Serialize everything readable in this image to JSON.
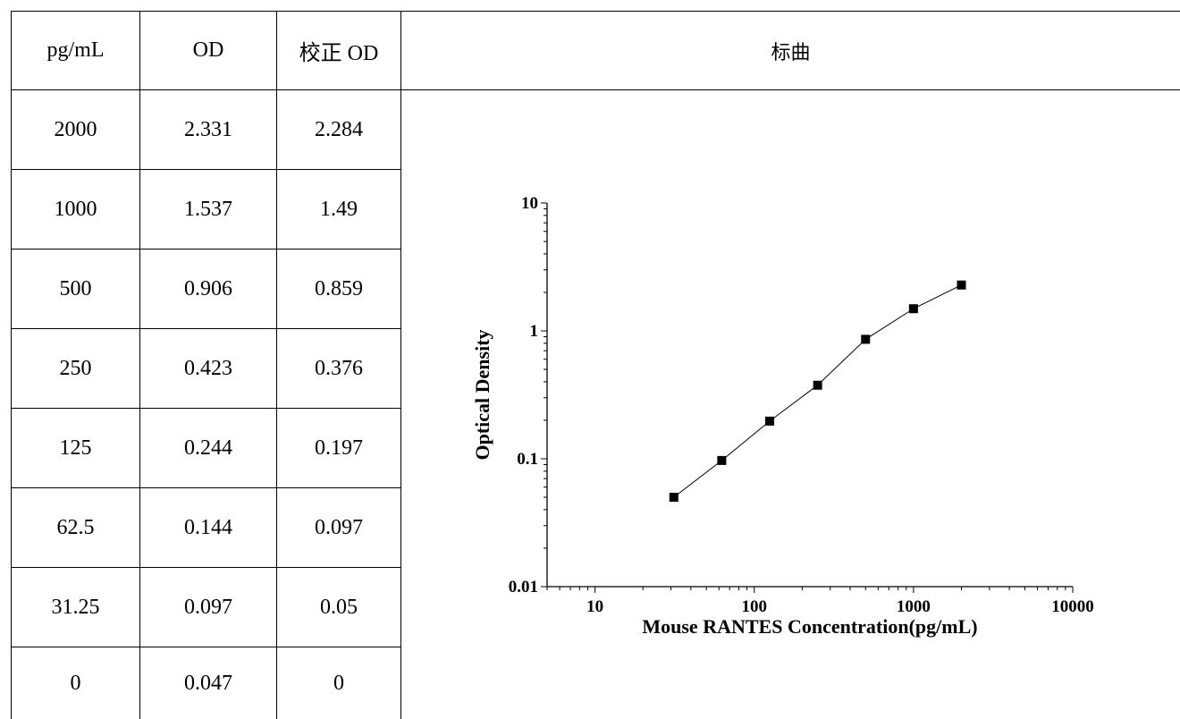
{
  "table": {
    "headers": [
      "pg/mL",
      "OD",
      "校正 OD"
    ],
    "rows": [
      [
        "2000",
        "2.331",
        "2.284"
      ],
      [
        "1000",
        "1.537",
        "1.49"
      ],
      [
        "500",
        "0.906",
        "0.859"
      ],
      [
        "250",
        "0.423",
        "0.376"
      ],
      [
        "125",
        "0.244",
        "0.197"
      ],
      [
        "62.5",
        "0.144",
        "0.097"
      ],
      [
        "31.25",
        "0.097",
        "0.05"
      ],
      [
        "0",
        "0.047",
        "0"
      ]
    ]
  },
  "chart_header": "标曲",
  "chart_data": {
    "type": "scatter",
    "title": "",
    "xlabel": "Mouse RANTES Concentration(pg/mL)",
    "ylabel": "Optical Density",
    "xscale": "log",
    "yscale": "log",
    "xlim": [
      5,
      10000
    ],
    "ylim": [
      0.01,
      10
    ],
    "xticks": [
      "10",
      "100",
      "1000",
      "10000"
    ],
    "yticks": [
      "0.01",
      "0.1",
      "1",
      "10"
    ],
    "x": [
      31.25,
      62.5,
      125,
      250,
      500,
      1000,
      2000
    ],
    "y": [
      0.05,
      0.097,
      0.197,
      0.376,
      0.859,
      1.49,
      2.284
    ],
    "connected": true,
    "marker": "square",
    "color": "#000000",
    "grid": false,
    "legend": "none"
  }
}
